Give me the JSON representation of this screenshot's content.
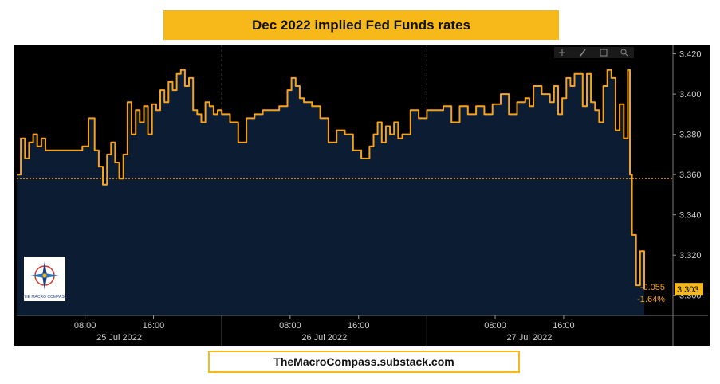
{
  "title": "Dec 2022 implied Fed Funds rates",
  "footer": "TheMacroCompass.substack.com",
  "logo_text": "THE MACRO COMPASS",
  "toolbar_icons": [
    "crosshair-icon",
    "pencil-icon",
    "grid-icon",
    "zoom-icon"
  ],
  "colors": {
    "line": "#f7a21b",
    "area": "#0c1c33",
    "background": "#000000",
    "title_bg": "#f7b81a",
    "ref_line": "#f7a21b"
  },
  "chart_data": {
    "type": "area",
    "title": "Dec 2022 implied Fed Funds rates",
    "xlabel": "",
    "ylabel": "",
    "ylim": [
      3.29,
      3.423
    ],
    "y_ticks": [
      "3.420",
      "3.400",
      "3.380",
      "3.360",
      "3.340",
      "3.320",
      "3.300"
    ],
    "x_ticks": [
      {
        "label": "08:00",
        "t": 0.333
      },
      {
        "label": "16:00",
        "t": 0.667
      },
      {
        "label": "08:00",
        "t": 1.333
      },
      {
        "label": "16:00",
        "t": 1.667
      },
      {
        "label": "08:00",
        "t": 2.333
      },
      {
        "label": "16:00",
        "t": 2.667
      }
    ],
    "day_labels": [
      {
        "label": "25 Jul 2022",
        "t": 0.5
      },
      {
        "label": "26 Jul 2022",
        "t": 1.5
      },
      {
        "label": "27 Jul 2022",
        "t": 2.5
      }
    ],
    "day_boundaries": [
      1,
      2
    ],
    "reference_value": 3.358,
    "last_value": "3.303",
    "change": "-0.055",
    "change_pct": "-1.64%",
    "series": [
      {
        "x": [
          0,
          0.02,
          0.04,
          0.06,
          0.08,
          0.1,
          0.12,
          0.14,
          0.17,
          0.2,
          0.24,
          0.28,
          0.32,
          0.35,
          0.38,
          0.4,
          0.42,
          0.44,
          0.46,
          0.48,
          0.5,
          0.52,
          0.54,
          0.56,
          0.58,
          0.6,
          0.62,
          0.64,
          0.66,
          0.68,
          0.7,
          0.72,
          0.74,
          0.76,
          0.78,
          0.8,
          0.82,
          0.84,
          0.86,
          0.88,
          0.9,
          0.92,
          0.94,
          0.96,
          0.98,
          1.0,
          1.04,
          1.08,
          1.12,
          1.16,
          1.2,
          1.24,
          1.28,
          1.32,
          1.34,
          1.36,
          1.38,
          1.4,
          1.44,
          1.48,
          1.52,
          1.56,
          1.6,
          1.64,
          1.68,
          1.72,
          1.74,
          1.76,
          1.78,
          1.8,
          1.82,
          1.84,
          1.86,
          1.88,
          1.92,
          1.96,
          2.0,
          2.04,
          2.08,
          2.12,
          2.16,
          2.2,
          2.24,
          2.28,
          2.32,
          2.36,
          2.4,
          2.44,
          2.48,
          2.5,
          2.52,
          2.56,
          2.6,
          2.62,
          2.64,
          2.66,
          2.68,
          2.7,
          2.72,
          2.74,
          2.76,
          2.78,
          2.8,
          2.82,
          2.84,
          2.86,
          2.88,
          2.9,
          2.92,
          2.94,
          2.96,
          2.98,
          2.99,
          3.0,
          3.02,
          3.04,
          3.06
        ],
        "values": [
          3.36,
          3.378,
          3.368,
          3.376,
          3.38,
          3.374,
          3.378,
          3.372,
          3.372,
          3.372,
          3.372,
          3.372,
          3.374,
          3.388,
          3.372,
          3.364,
          3.355,
          3.37,
          3.376,
          3.366,
          3.358,
          3.37,
          3.396,
          3.38,
          3.392,
          3.386,
          3.394,
          3.38,
          3.395,
          3.392,
          3.402,
          3.396,
          3.406,
          3.402,
          3.41,
          3.412,
          3.404,
          3.408,
          3.392,
          3.39,
          3.386,
          3.396,
          3.394,
          3.39,
          3.392,
          3.39,
          3.386,
          3.376,
          3.388,
          3.39,
          3.392,
          3.392,
          3.394,
          3.402,
          3.408,
          3.404,
          3.398,
          3.396,
          3.394,
          3.388,
          3.376,
          3.382,
          3.38,
          3.372,
          3.368,
          3.374,
          3.38,
          3.386,
          3.376,
          3.384,
          3.38,
          3.386,
          3.378,
          3.38,
          3.392,
          3.388,
          3.392,
          3.392,
          3.394,
          3.386,
          3.394,
          3.39,
          3.394,
          3.39,
          3.395,
          3.4,
          3.39,
          3.396,
          3.398,
          3.394,
          3.404,
          3.4,
          3.396,
          3.404,
          3.39,
          3.398,
          3.408,
          3.404,
          3.41,
          3.41,
          3.394,
          3.41,
          3.396,
          3.392,
          3.386,
          3.404,
          3.412,
          3.408,
          3.382,
          3.395,
          3.378,
          3.412,
          3.36,
          3.33,
          3.305,
          3.322,
          3.303
        ]
      }
    ]
  }
}
